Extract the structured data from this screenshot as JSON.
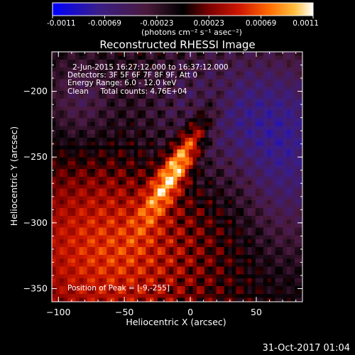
{
  "colorbar": {
    "tick_labels": [
      "-0.0011",
      "-0.00069",
      "-0.00023",
      "0.00023",
      "0.00069",
      "0.0011"
    ],
    "unit_label": "(photons cm⁻² s⁻¹ asec⁻²)",
    "range": [
      -0.0011,
      0.0011
    ]
  },
  "title": "Reconstructed RHESSI Image",
  "annotations": {
    "time": "2-Jun-2015 16:27:12.000 to 16:37:12.000",
    "detectors": "Detectors: 3F 5F 6F 7F 8F 9F, Att 0",
    "energy": "Energy Range: 6.0 - 12.0 keV",
    "clean": "Clean     Total counts: 4.76E+04",
    "peak": "Position of Peak = [-9,-255]"
  },
  "footer": {
    "date": "31-Oct-2017 01:04"
  },
  "chart_data": {
    "type": "heatmap",
    "title": "Reconstructed RHESSI Image",
    "xlabel": "Heliocentric X (arcsec)",
    "ylabel": "Heliocentric Y (arcsec)",
    "xlim": [
      -105,
      85
    ],
    "ylim": [
      -360,
      -170
    ],
    "x_ticks": [
      -100,
      -50,
      0,
      50
    ],
    "y_ticks": [
      -200,
      -250,
      -300,
      -350
    ],
    "x_tick_labels": [
      "−100",
      "−50",
      "0",
      "50"
    ],
    "y_tick_labels": [
      "−200",
      "−250",
      "−300",
      "−350"
    ],
    "peak": {
      "x": -9,
      "y": -255
    },
    "colormap": "red-temperature",
    "value_range": [
      -0.0011,
      0.0011
    ],
    "grid": false
  }
}
